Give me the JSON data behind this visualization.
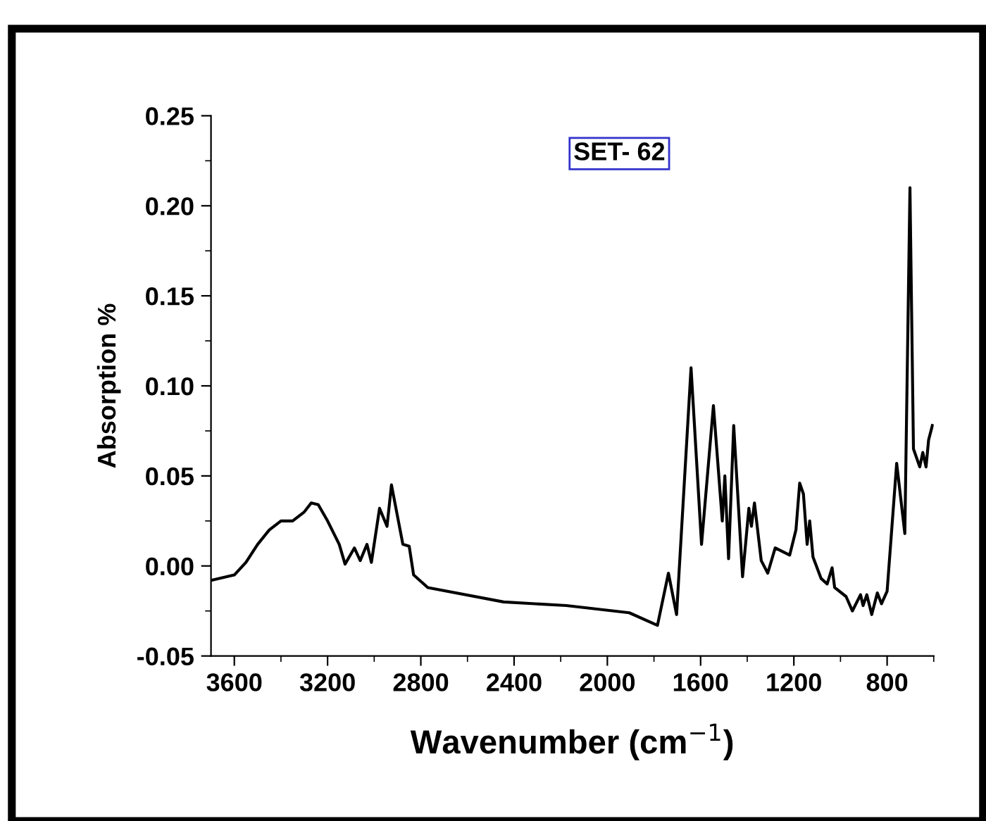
{
  "chart_data": {
    "type": "line",
    "xlabel": "Wavenumber (cm$^{−1}$)",
    "ylabel": "Absorption %",
    "annotations": [
      "SET- 62"
    ],
    "x": [
      3700,
      3600,
      3550,
      3500,
      3450,
      3400,
      3350,
      3300,
      3270,
      3240,
      3200,
      3150,
      3125,
      3085,
      3060,
      3031,
      3012,
      2977,
      2945,
      2926,
      2877,
      2850,
      2831,
      2770,
      2445,
      2176,
      1906,
      1785,
      1738,
      1703,
      1641,
      1596,
      1545,
      1507,
      1496,
      1480,
      1458,
      1420,
      1393,
      1382,
      1369,
      1340,
      1312,
      1280,
      1218,
      1191,
      1175,
      1159,
      1143,
      1132,
      1118,
      1083,
      1057,
      1036,
      1025,
      976,
      949,
      914,
      903,
      887,
      866,
      842,
      824,
      800,
      759,
      724,
      702,
      687,
      660,
      647,
      633,
      622,
      606
    ],
    "series": [
      {
        "color": "#000000",
        "values": [
          -0.008,
          -0.005,
          0.002,
          0.012,
          0.02,
          0.025,
          0.025,
          0.03,
          0.035,
          0.034,
          0.025,
          0.012,
          0.001,
          0.01,
          0.003,
          0.012,
          0.002,
          0.032,
          0.022,
          0.045,
          0.012,
          0.011,
          -0.005,
          -0.012,
          -0.02,
          -0.022,
          -0.026,
          -0.033,
          -0.004,
          -0.027,
          0.11,
          0.012,
          0.089,
          0.025,
          0.05,
          0.004,
          0.078,
          -0.006,
          0.032,
          0.022,
          0.035,
          0.003,
          -0.004,
          0.01,
          0.006,
          0.02,
          0.046,
          0.04,
          0.012,
          0.025,
          0.005,
          -0.007,
          -0.01,
          -0.001,
          -0.012,
          -0.017,
          -0.025,
          -0.016,
          -0.022,
          -0.016,
          -0.027,
          -0.015,
          -0.021,
          -0.014,
          0.057,
          0.018,
          0.21,
          0.065,
          0.055,
          0.063,
          0.055,
          0.07,
          0.078
        ]
      }
    ],
    "xlim": [
      3700,
      600
    ],
    "ylim": [
      -0.05,
      0.25
    ],
    "xticks": [
      3600,
      3200,
      2800,
      2400,
      2000,
      1600,
      1200,
      800
    ],
    "yticks": [
      {
        "value": -0.05,
        "label": "-0.05"
      },
      {
        "value": 0,
        "label": "0.00"
      },
      {
        "value": 0.05,
        "label": "0.05"
      },
      {
        "value": 0.1,
        "label": "0.10"
      },
      {
        "value": 0.15,
        "label": "0.15"
      },
      {
        "value": 0.2,
        "label": "0.20"
      },
      {
        "value": 0.25,
        "label": "0.25"
      }
    ],
    "grid": false,
    "legend": false,
    "line_style": "solid",
    "marker": "none"
  }
}
